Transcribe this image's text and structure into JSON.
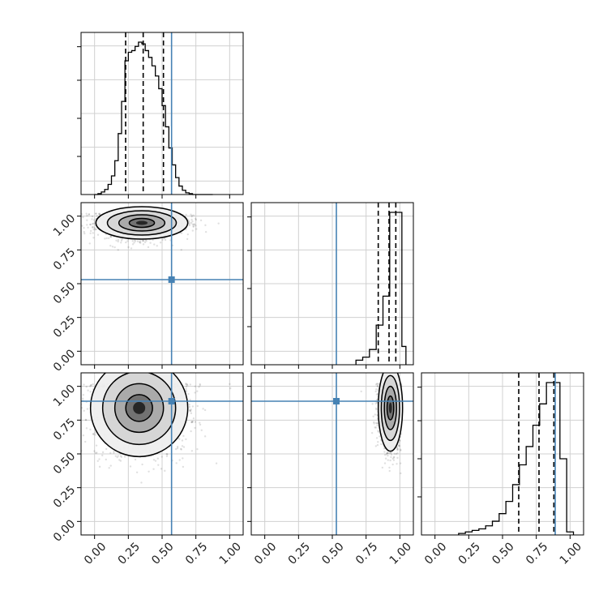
{
  "figure": {
    "type": "corner plot",
    "grid": true,
    "truth_color": "#4682b4",
    "hist_color": "#000000",
    "x_ticks": [
      "0.00",
      "0.25",
      "0.50",
      "0.75",
      "1.00"
    ],
    "y_ticks": [
      "0.00",
      "0.25",
      "0.50",
      "0.75",
      "1.00"
    ]
  },
  "chart_data": [
    {
      "type": "histogram",
      "panel": "row1-col1",
      "xlim": [
        -0.1,
        1.1
      ],
      "bin_centers": [
        0.0125,
        0.0375,
        0.0625,
        0.0875,
        0.1125,
        0.1375,
        0.1625,
        0.1875,
        0.2125,
        0.2375,
        0.2625,
        0.2875,
        0.3125,
        0.3375,
        0.3625,
        0.3875,
        0.4125,
        0.4375,
        0.4625,
        0.4875,
        0.5125,
        0.5375,
        0.5625,
        0.5875,
        0.6125,
        0.6375,
        0.6625,
        0.6875,
        0.7125,
        0.7375,
        0.7625,
        0.7875,
        0.8125,
        0.8375,
        0.8625
      ],
      "counts": [
        0,
        1,
        3,
        6,
        12,
        22,
        40,
        72,
        110,
        158,
        168,
        170,
        175,
        180,
        178,
        170,
        162,
        152,
        140,
        125,
        105,
        80,
        55,
        35,
        20,
        10,
        5,
        2,
        1,
        0,
        0,
        0,
        0,
        0,
        0
      ],
      "quantiles": [
        0.23,
        0.36,
        0.51
      ],
      "truth": 0.57
    },
    {
      "type": "histogram",
      "panel": "row2-col2",
      "xlim": [
        -0.1,
        1.1
      ],
      "bin_centers": [
        0.7,
        0.75,
        0.8,
        0.85,
        0.9,
        0.95,
        1.0,
        1.03
      ],
      "counts": [
        3,
        5,
        10,
        26,
        45,
        100,
        100,
        12
      ],
      "quantiles": [
        0.84,
        0.92,
        0.97
      ],
      "truth": 0.53
    },
    {
      "type": "histogram",
      "panel": "row3-col3",
      "xlim": [
        -0.1,
        1.1
      ],
      "bin_centers": [
        0.2,
        0.25,
        0.3,
        0.35,
        0.4,
        0.45,
        0.5,
        0.55,
        0.6,
        0.65,
        0.7,
        0.75,
        0.8,
        0.85,
        0.9,
        0.95,
        1.0
      ],
      "counts": [
        1,
        2,
        3,
        4,
        6,
        9,
        14,
        22,
        33,
        46,
        58,
        72,
        86,
        100,
        100,
        50,
        2
      ],
      "quantiles": [
        0.62,
        0.77,
        0.88
      ],
      "truth": 0.89
    },
    {
      "type": "scatter",
      "panel": "row2-col1",
      "xlim": [
        -0.1,
        1.1
      ],
      "ylim": [
        -0.1,
        1.1
      ],
      "density_center": [
        0.35,
        0.95
      ],
      "density_spread": [
        0.17,
        0.06
      ],
      "truth_point": [
        0.57,
        0.53
      ]
    },
    {
      "type": "scatter",
      "panel": "row3-col1",
      "xlim": [
        -0.1,
        1.1
      ],
      "ylim": [
        -0.1,
        1.1
      ],
      "density_center": [
        0.33,
        0.84
      ],
      "density_spread": [
        0.18,
        0.18
      ],
      "truth_point": [
        0.57,
        0.89
      ]
    },
    {
      "type": "scatter",
      "panel": "row3-col2",
      "xlim": [
        -0.1,
        1.1
      ],
      "ylim": [
        -0.1,
        1.1
      ],
      "density_center": [
        0.93,
        0.84
      ],
      "density_spread": [
        0.045,
        0.16
      ],
      "truth_point": [
        0.53,
        0.89
      ]
    }
  ]
}
